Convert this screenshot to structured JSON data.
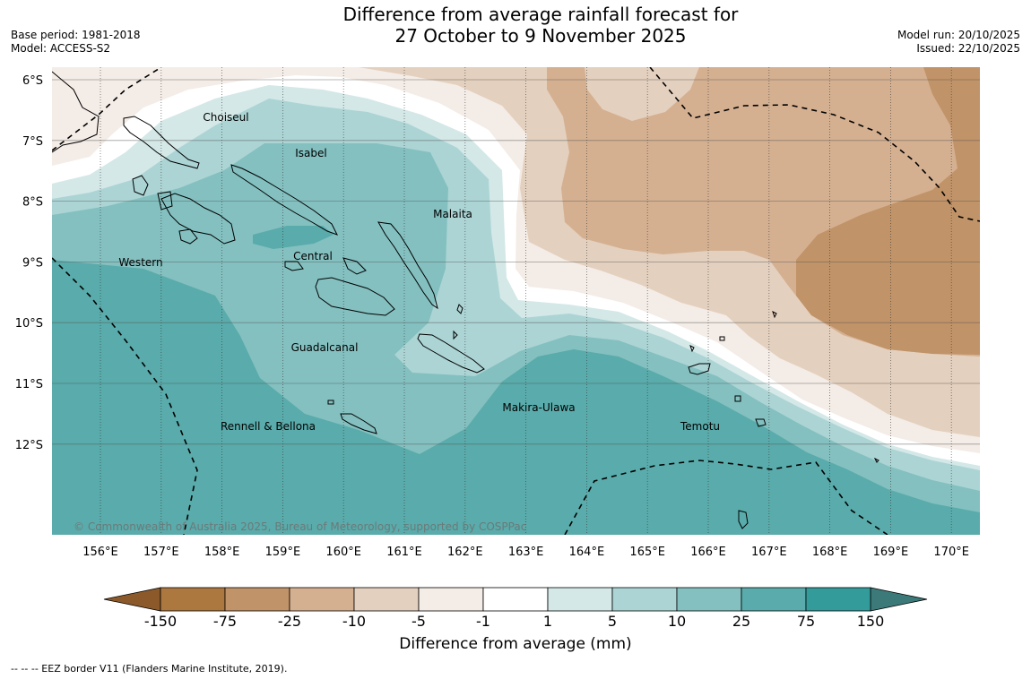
{
  "title_line1": "Difference from average rainfall forecast for",
  "title_line2": "27 October to 9 November 2025",
  "meta_left": {
    "base_period": "Base period: 1981-2018",
    "model": "Model: ACCESS-S2"
  },
  "meta_right": {
    "model_run": "Model run: 20/10/2025",
    "issued": "Issued: 22/10/2025"
  },
  "map": {
    "lat_labels": [
      "6°S",
      "7°S",
      "8°S",
      "9°S",
      "10°S",
      "11°S",
      "12°S"
    ],
    "lon_labels": [
      "156°E",
      "157°E",
      "158°E",
      "159°E",
      "160°E",
      "161°E",
      "162°E",
      "163°E",
      "164°E",
      "165°E",
      "166°E",
      "167°E",
      "168°E",
      "169°E",
      "170°E"
    ],
    "regions": [
      {
        "name": "Choiseul"
      },
      {
        "name": "Isabel"
      },
      {
        "name": "Malaita"
      },
      {
        "name": "Western"
      },
      {
        "name": "Central"
      },
      {
        "name": "Guadalcanal"
      },
      {
        "name": "Makira-Ulawa"
      },
      {
        "name": "Rennell & Bellona"
      },
      {
        "name": "Temotu"
      }
    ],
    "copyright": "© Commonwealth of Australia 2025, Bureau of Meteorology, supported by COSPPac"
  },
  "colorbar": {
    "ticks": [
      "-150",
      "-75",
      "-25",
      "-10",
      "-5",
      "-1",
      "1",
      "5",
      "10",
      "25",
      "75",
      "150"
    ],
    "colors": [
      "#ad7740",
      "#c19368",
      "#d4b091",
      "#e4d0be",
      "#f4ece6",
      "#ffffff",
      "#d3e8e7",
      "#acd4d4",
      "#84c0c0",
      "#5aabab",
      "#349b9b"
    ],
    "under_color": "#8c5a2a",
    "over_color": "#3c7a7a",
    "label": "Difference from average (mm)"
  },
  "footnote": "--  --  -- EEZ border V11 (Flanders Marine Institute, 2019)."
}
